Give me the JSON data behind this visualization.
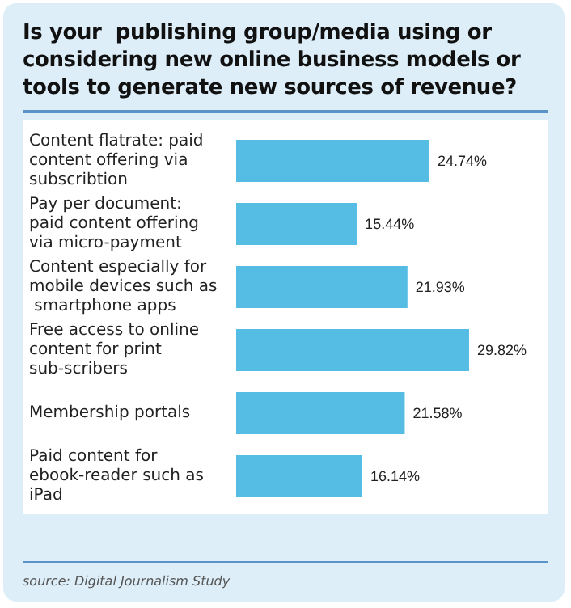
{
  "chart_data": {
    "type": "bar",
    "orientation": "horizontal",
    "title": "Is your  publishing group/media using or considering new online business models or tools to generate new sources of revenue?",
    "categories": [
      "Content flatrate: paid content offering via subscribtion",
      "Pay per document: paid content offering via micro-payment",
      "Content especially for mobile devices such as smartphone apps",
      "Free access to online content for print sub-scribers",
      "Membership portals",
      "Paid content for ebook-reader such as iPad"
    ],
    "values": [
      24.74,
      15.44,
      21.93,
      29.82,
      21.58,
      16.14
    ],
    "value_labels": [
      "24.74%",
      "15.44%",
      "21.93%",
      "29.82%",
      "21.58%",
      "16.14%"
    ],
    "color": "#55bde3",
    "annotations": [
      "source: Digital Journalism Study"
    ]
  }
}
